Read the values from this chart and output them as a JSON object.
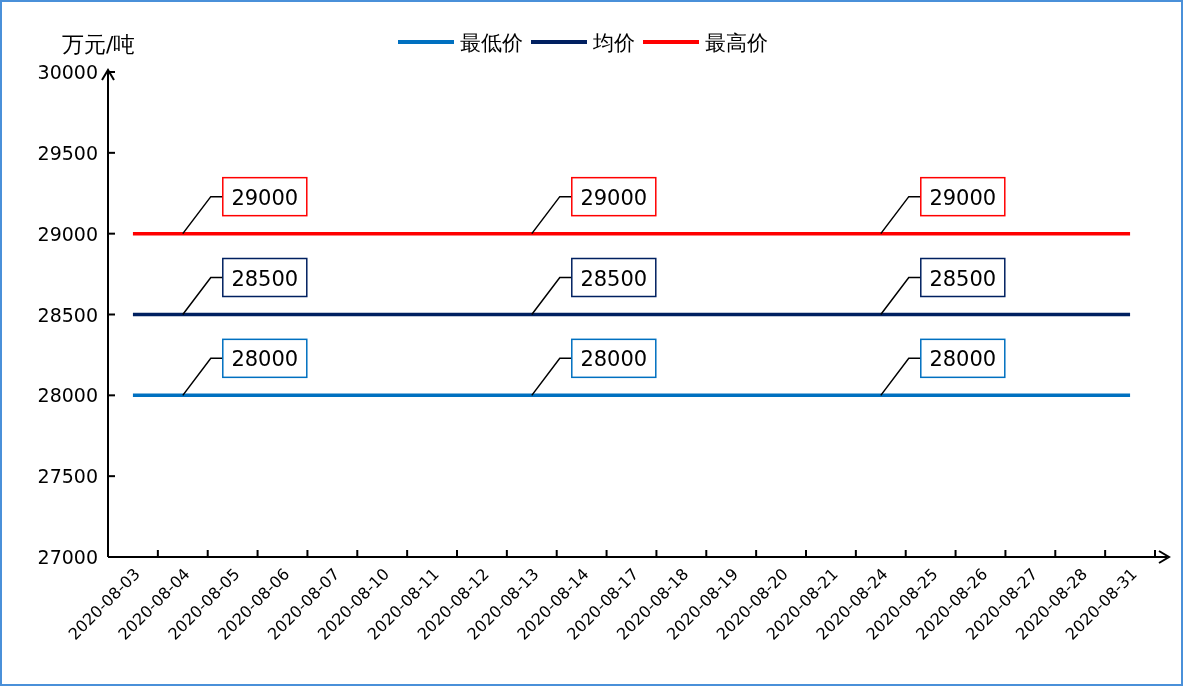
{
  "chart_data": {
    "type": "line",
    "ylabel": "万元/吨",
    "categories": [
      "2020-08-03",
      "2020-08-04",
      "2020-08-05",
      "2020-08-06",
      "2020-08-07",
      "2020-08-10",
      "2020-08-11",
      "2020-08-12",
      "2020-08-13",
      "2020-08-14",
      "2020-08-17",
      "2020-08-18",
      "2020-08-19",
      "2020-08-20",
      "2020-08-21",
      "2020-08-24",
      "2020-08-25",
      "2020-08-26",
      "2020-08-27",
      "2020-08-28",
      "2020-08-31"
    ],
    "series": [
      {
        "name": "最低价",
        "color": "#0070c0",
        "values": [
          28000,
          28000,
          28000,
          28000,
          28000,
          28000,
          28000,
          28000,
          28000,
          28000,
          28000,
          28000,
          28000,
          28000,
          28000,
          28000,
          28000,
          28000,
          28000,
          28000,
          28000
        ],
        "value_labels": [
          null,
          "28000",
          null,
          null,
          null,
          null,
          null,
          null,
          "28000",
          null,
          null,
          null,
          null,
          null,
          null,
          "28000",
          null,
          null,
          null,
          null,
          null
        ]
      },
      {
        "name": "均价",
        "color": "#002060",
        "values": [
          28500,
          28500,
          28500,
          28500,
          28500,
          28500,
          28500,
          28500,
          28500,
          28500,
          28500,
          28500,
          28500,
          28500,
          28500,
          28500,
          28500,
          28500,
          28500,
          28500,
          28500
        ],
        "value_labels": [
          null,
          "28500",
          null,
          null,
          null,
          null,
          null,
          null,
          "28500",
          null,
          null,
          null,
          null,
          null,
          null,
          "28500",
          null,
          null,
          null,
          null,
          null
        ]
      },
      {
        "name": "最高价",
        "color": "#ff0000",
        "values": [
          29000,
          29000,
          29000,
          29000,
          29000,
          29000,
          29000,
          29000,
          29000,
          29000,
          29000,
          29000,
          29000,
          29000,
          29000,
          29000,
          29000,
          29000,
          29000,
          29000,
          29000
        ],
        "value_labels": [
          null,
          "29000",
          null,
          null,
          null,
          null,
          null,
          null,
          "29000",
          null,
          null,
          null,
          null,
          null,
          null,
          "29000",
          null,
          null,
          null,
          null,
          null
        ]
      }
    ],
    "ylim": [
      27000,
      30000
    ],
    "yticks": [
      27000,
      27500,
      28000,
      28500,
      29000,
      29500,
      30000
    ],
    "grid": false,
    "legend": "top",
    "marker": "none",
    "line_style": "solid"
  }
}
